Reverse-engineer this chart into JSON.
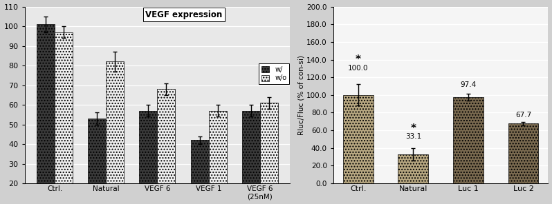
{
  "left_chart": {
    "title": "VEGF expression",
    "categories": [
      "Ctrl.",
      "Natural",
      "VEGF 6",
      "VEGF 1",
      "VEGF 6\n(25nM)"
    ],
    "with_values": [
      101,
      53,
      57,
      42,
      57
    ],
    "without_values": [
      97,
      82,
      68,
      57,
      61
    ],
    "with_errors": [
      4,
      3,
      3,
      2,
      3
    ],
    "without_errors": [
      3,
      5,
      3,
      3,
      3
    ],
    "ylim": [
      20,
      110
    ],
    "yticks": [
      20,
      30,
      40,
      50,
      60,
      70,
      80,
      90,
      100,
      110
    ],
    "ylabel": "",
    "legend_with": "w/",
    "legend_without": "w/o",
    "color_with": "#3a3a3a",
    "color_without": "#f0f0f0",
    "hatch_with": "....",
    "hatch_without": "....",
    "plot_bg": "#e8e8e8"
  },
  "right_chart": {
    "categories": [
      "Ctrl.",
      "Natural",
      "Luc 1",
      "Luc 2"
    ],
    "values": [
      100.0,
      33.1,
      97.4,
      67.7
    ],
    "errors": [
      12,
      7,
      4,
      2
    ],
    "labels": [
      "100.0",
      "33.1",
      "97.4",
      "67.7"
    ],
    "stars": [
      true,
      true,
      false,
      false
    ],
    "ylim": [
      0,
      200
    ],
    "yticks": [
      0.0,
      20.0,
      40.0,
      60.0,
      80.0,
      100.0,
      120.0,
      140.0,
      160.0,
      180.0,
      200.0
    ],
    "ylabel": "Rluc/Fluc (% of con-si)",
    "colors": [
      "#b8a882",
      "#b8a882",
      "#7a6a50",
      "#7a6a50"
    ],
    "hatch": "....",
    "plot_bg": "#f5f5f5"
  },
  "fig_bg": "#d0d0d0"
}
